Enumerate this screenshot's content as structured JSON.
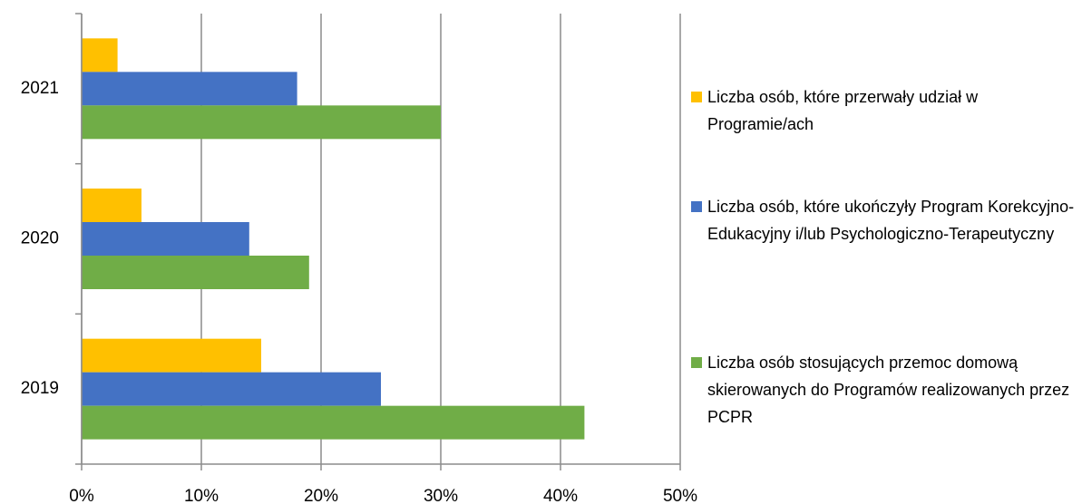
{
  "chart_data": {
    "type": "hbar",
    "categories": [
      "2019",
      "2020",
      "2021"
    ],
    "series": [
      {
        "name": "Liczba osób, które przerwały udział w Programie/ach",
        "color": "#ffc000",
        "values": [
          15,
          5,
          3
        ]
      },
      {
        "name": "Liczba osób, które ukończyły Program Korekcyjno-Edukacyjny i/lub Psychologiczno-Terapeutyczny",
        "color": "#4472c4",
        "values": [
          25,
          14,
          18
        ]
      },
      {
        "name": "Liczba osób stosujących przemoc domową skierowanych do Programów realizowanych przez PCPR",
        "color": "#70ad47",
        "values": [
          42,
          19,
          30
        ]
      }
    ],
    "xlim": [
      0,
      50
    ],
    "xticks": [
      {
        "value": 0,
        "label": "0%"
      },
      {
        "value": 10,
        "label": "10%"
      },
      {
        "value": 20,
        "label": "20%"
      },
      {
        "value": 30,
        "label": "30%"
      },
      {
        "value": 40,
        "label": "40%"
      },
      {
        "value": 50,
        "label": "50%"
      }
    ],
    "grid": true
  }
}
